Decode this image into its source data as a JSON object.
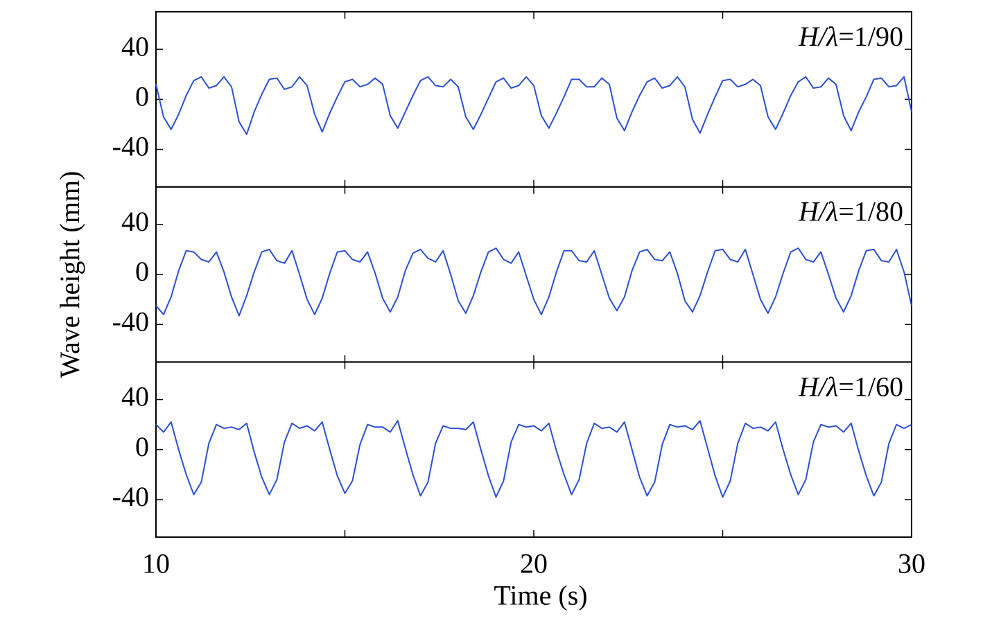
{
  "chart_data": [
    {
      "type": "line",
      "annotation": "H/λ=1/90",
      "color": "#2a4fd6",
      "xlim": [
        10,
        30
      ],
      "ylim": [
        -70,
        70
      ],
      "yticks": [
        -40,
        0,
        40
      ],
      "xticks": [
        10,
        20,
        30
      ],
      "xminor_ticks": [
        15,
        25
      ],
      "x": [
        10,
        10.2,
        10.4,
        10.6,
        10.8,
        11,
        11.2,
        11.4,
        11.6,
        11.8,
        12,
        12.2,
        12.4,
        12.6,
        12.8,
        13,
        13.2,
        13.4,
        13.6,
        13.8,
        14,
        14.2,
        14.4,
        14.6,
        14.8,
        15,
        15.2,
        15.4,
        15.6,
        15.8,
        16,
        16.2,
        16.4,
        16.6,
        16.8,
        17,
        17.2,
        17.4,
        17.6,
        17.8,
        18,
        18.2,
        18.4,
        18.6,
        18.8,
        19,
        19.2,
        19.4,
        19.6,
        19.8,
        20,
        20.2,
        20.4,
        20.6,
        20.8,
        21,
        21.2,
        21.4,
        21.6,
        21.8,
        22,
        22.2,
        22.4,
        22.6,
        22.8,
        23,
        23.2,
        23.4,
        23.6,
        23.8,
        24,
        24.2,
        24.4,
        24.6,
        24.8,
        25,
        25.2,
        25.4,
        25.6,
        25.8,
        26,
        26.2,
        26.4,
        26.6,
        26.8,
        27,
        27.2,
        27.4,
        27.6,
        27.8,
        28,
        28.2,
        28.4,
        28.6,
        28.8,
        29,
        29.2,
        29.4,
        29.6,
        29.8,
        30
      ],
      "values": [
        12,
        -14,
        -24,
        -12,
        3,
        15,
        18,
        9,
        11,
        18,
        10,
        -18,
        -28,
        -10,
        4,
        16,
        17,
        8,
        10,
        18,
        11,
        -12,
        -26,
        -11,
        2,
        14,
        16,
        10,
        12,
        17,
        12,
        -13,
        -23,
        -10,
        3,
        15,
        18,
        11,
        10,
        16,
        10,
        -14,
        -24,
        -12,
        1,
        14,
        17,
        9,
        11,
        18,
        11,
        -13,
        -23,
        -11,
        2,
        16,
        16,
        10,
        10,
        17,
        12,
        -15,
        -25,
        -10,
        3,
        14,
        17,
        9,
        11,
        18,
        10,
        -16,
        -27,
        -12,
        2,
        15,
        16,
        10,
        12,
        16,
        11,
        -14,
        -24,
        -11,
        3,
        14,
        18,
        9,
        10,
        17,
        12,
        -13,
        -25,
        -10,
        2,
        16,
        17,
        10,
        11,
        18,
        -10
      ]
    },
    {
      "type": "line",
      "annotation": "H/λ=1/80",
      "color": "#2a4fd6",
      "xlim": [
        10,
        30
      ],
      "ylim": [
        -70,
        70
      ],
      "yticks": [
        -40,
        0,
        40
      ],
      "xticks": [
        10,
        20,
        30
      ],
      "xminor_ticks": [
        15,
        25
      ],
      "y_label": "Wave height (mm)",
      "x": [
        10,
        10.2,
        10.4,
        10.6,
        10.8,
        11,
        11.2,
        11.4,
        11.6,
        11.8,
        12,
        12.2,
        12.4,
        12.6,
        12.8,
        13,
        13.2,
        13.4,
        13.6,
        13.8,
        14,
        14.2,
        14.4,
        14.6,
        14.8,
        15,
        15.2,
        15.4,
        15.6,
        15.8,
        16,
        16.2,
        16.4,
        16.6,
        16.8,
        17,
        17.2,
        17.4,
        17.6,
        17.8,
        18,
        18.2,
        18.4,
        18.6,
        18.8,
        19,
        19.2,
        19.4,
        19.6,
        19.8,
        20,
        20.2,
        20.4,
        20.6,
        20.8,
        21,
        21.2,
        21.4,
        21.6,
        21.8,
        22,
        22.2,
        22.4,
        22.6,
        22.8,
        23,
        23.2,
        23.4,
        23.6,
        23.8,
        24,
        24.2,
        24.4,
        24.6,
        24.8,
        25,
        25.2,
        25.4,
        25.6,
        25.8,
        26,
        26.2,
        26.4,
        26.6,
        26.8,
        27,
        27.2,
        27.4,
        27.6,
        27.8,
        28,
        28.2,
        28.4,
        28.6,
        28.8,
        29,
        29.2,
        29.4,
        29.6,
        29.8,
        30
      ],
      "values": [
        -25,
        -32,
        -18,
        3,
        19,
        18,
        12,
        10,
        18,
        2,
        -18,
        -33,
        -17,
        2,
        18,
        20,
        11,
        9,
        19,
        0,
        -20,
        -32,
        -19,
        1,
        18,
        19,
        12,
        10,
        18,
        1,
        -19,
        -30,
        -18,
        3,
        17,
        20,
        13,
        10,
        19,
        0,
        -21,
        -31,
        -17,
        2,
        18,
        21,
        12,
        9,
        18,
        -1,
        -20,
        -32,
        -18,
        2,
        19,
        19,
        11,
        10,
        19,
        0,
        -19,
        -29,
        -18,
        3,
        18,
        20,
        12,
        11,
        18,
        1,
        -21,
        -30,
        -17,
        2,
        19,
        20,
        12,
        10,
        20,
        0,
        -20,
        -31,
        -18,
        1,
        18,
        21,
        12,
        10,
        18,
        0,
        -19,
        -30,
        -17,
        3,
        19,
        20,
        11,
        10,
        20,
        2,
        -25
      ]
    },
    {
      "type": "line",
      "annotation": "H/λ=1/60",
      "color": "#2a4fd6",
      "xlim": [
        10,
        30
      ],
      "ylim": [
        -70,
        70
      ],
      "yticks": [
        -40,
        0,
        40
      ],
      "xticks": [
        10,
        20,
        30
      ],
      "xminor_ticks": [
        15,
        25
      ],
      "x_label": "Time (s)",
      "x": [
        10,
        10.2,
        10.4,
        10.6,
        10.8,
        11,
        11.2,
        11.4,
        11.6,
        11.8,
        12,
        12.2,
        12.4,
        12.6,
        12.8,
        13,
        13.2,
        13.4,
        13.6,
        13.8,
        14,
        14.2,
        14.4,
        14.6,
        14.8,
        15,
        15.2,
        15.4,
        15.6,
        15.8,
        16,
        16.2,
        16.4,
        16.6,
        16.8,
        17,
        17.2,
        17.4,
        17.6,
        17.8,
        18,
        18.2,
        18.4,
        18.6,
        18.8,
        19,
        19.2,
        19.4,
        19.6,
        19.8,
        20,
        20.2,
        20.4,
        20.6,
        20.8,
        21,
        21.2,
        21.4,
        21.6,
        21.8,
        22,
        22.2,
        22.4,
        22.6,
        22.8,
        23,
        23.2,
        23.4,
        23.6,
        23.8,
        24,
        24.2,
        24.4,
        24.6,
        24.8,
        25,
        25.2,
        25.4,
        25.6,
        25.8,
        26,
        26.2,
        26.4,
        26.6,
        26.8,
        27,
        27.2,
        27.4,
        27.6,
        27.8,
        28,
        28.2,
        28.4,
        28.6,
        28.8,
        29,
        29.2,
        29.4,
        29.6,
        29.8,
        30
      ],
      "values": [
        20,
        14,
        22,
        0,
        -20,
        -36,
        -26,
        5,
        20,
        17,
        18,
        16,
        21,
        -2,
        -22,
        -36,
        -24,
        6,
        21,
        17,
        19,
        15,
        22,
        0,
        -21,
        -35,
        -25,
        4,
        20,
        18,
        18,
        14,
        23,
        1,
        -20,
        -37,
        -26,
        5,
        19,
        17,
        17,
        16,
        22,
        0,
        -21,
        -38,
        -25,
        6,
        20,
        18,
        19,
        15,
        21,
        -1,
        -20,
        -36,
        -24,
        5,
        21,
        17,
        18,
        14,
        22,
        0,
        -22,
        -37,
        -26,
        4,
        20,
        18,
        19,
        16,
        23,
        1,
        -21,
        -38,
        -25,
        5,
        21,
        17,
        18,
        15,
        22,
        0,
        -20,
        -36,
        -24,
        6,
        20,
        18,
        19,
        14,
        21,
        -1,
        -21,
        -37,
        -26,
        5,
        20,
        17,
        20
      ]
    }
  ]
}
